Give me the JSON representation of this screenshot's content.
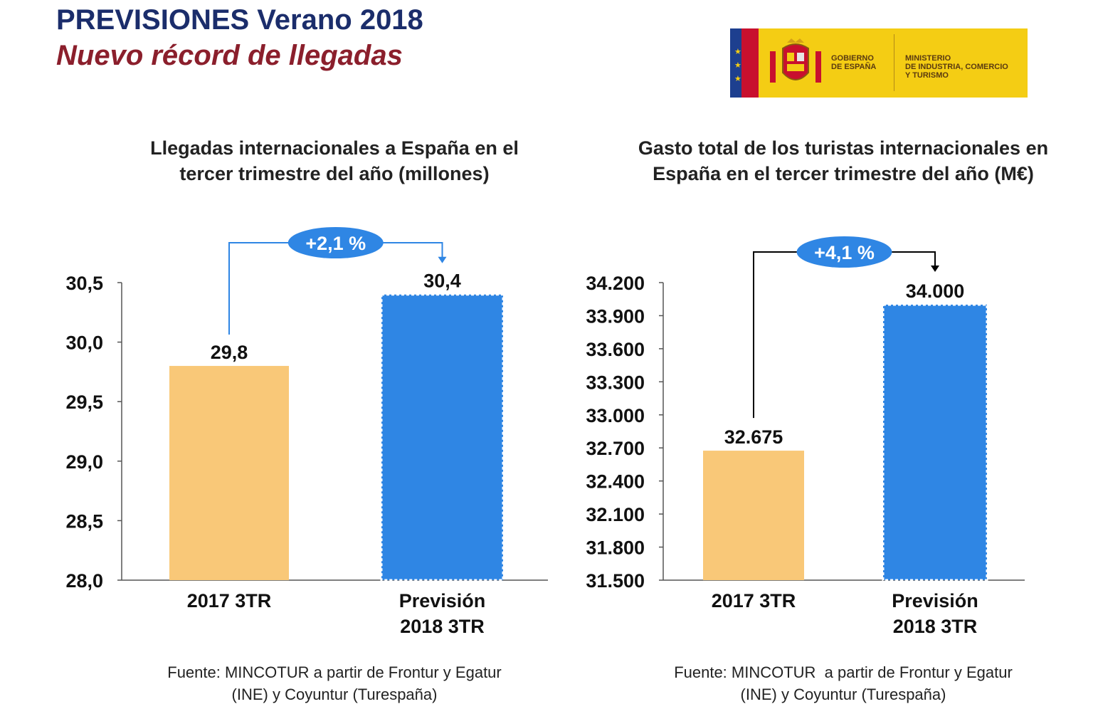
{
  "header": {
    "title": "PREVISIONES Verano 2018",
    "subtitle": "Nuevo récord de llegadas"
  },
  "logo": {
    "left_text": "GOBIERNO\nDE ESPAÑA",
    "right_text": "MINISTERIO\nDE INDUSTRIA, COMERCIO\nY TURISMO",
    "icon": "coat-of-arms-icon",
    "colors": {
      "background": "#f4cd14",
      "flag_blue": "#1d3f8f",
      "flag_red": "#c8102e",
      "stars": "#f4cd14"
    }
  },
  "colors": {
    "bar_2017": "#f9c878",
    "bar_prevision": "#2f86e4",
    "bubble": "#2f86e4",
    "arrow_left": "#2f86e4",
    "arrow_right": "#000000"
  },
  "chart_data": [
    {
      "type": "bar",
      "title": "Llegadas internacionales a España en el\ntercer trimestre del año (millones)",
      "categories": [
        "2017 3TR",
        "Previsión\n2018 3TR"
      ],
      "values": [
        29.8,
        30.4
      ],
      "value_labels": [
        "29,8",
        "30,4"
      ],
      "ylim": [
        28.0,
        30.5
      ],
      "yticks": [
        28.0,
        28.5,
        29.0,
        29.5,
        30.0,
        30.5
      ],
      "ytick_labels": [
        "28,0",
        "28,5",
        "29,0",
        "29,5",
        "30,0",
        "30,5"
      ],
      "annotation": "+2,1 %",
      "source": "Fuente: MINCOTUR a partir de Frontur y Egatur\n(INE) y Coyuntur (Turespaña)",
      "grid": false
    },
    {
      "type": "bar",
      "title": "Gasto total de los turistas internacionales en\nEspaña en el tercer trimestre del año (M€)",
      "categories": [
        "2017 3TR",
        "Previsión\n2018 3TR"
      ],
      "values": [
        32675,
        34000
      ],
      "value_labels": [
        "32.675",
        "34.000"
      ],
      "ylim": [
        31500,
        34200
      ],
      "yticks": [
        31500,
        31800,
        32100,
        32400,
        32700,
        33000,
        33300,
        33600,
        33900,
        34200
      ],
      "ytick_labels": [
        "31.500",
        "31.800",
        "32.100",
        "32.400",
        "32.700",
        "33.000",
        "33.300",
        "33.600",
        "33.900",
        "34.200"
      ],
      "annotation": "+4,1 %",
      "source": "Fuente: MINCOTUR  a partir de Frontur y Egatur\n(INE) y Coyuntur (Turespaña)",
      "grid": false
    }
  ]
}
